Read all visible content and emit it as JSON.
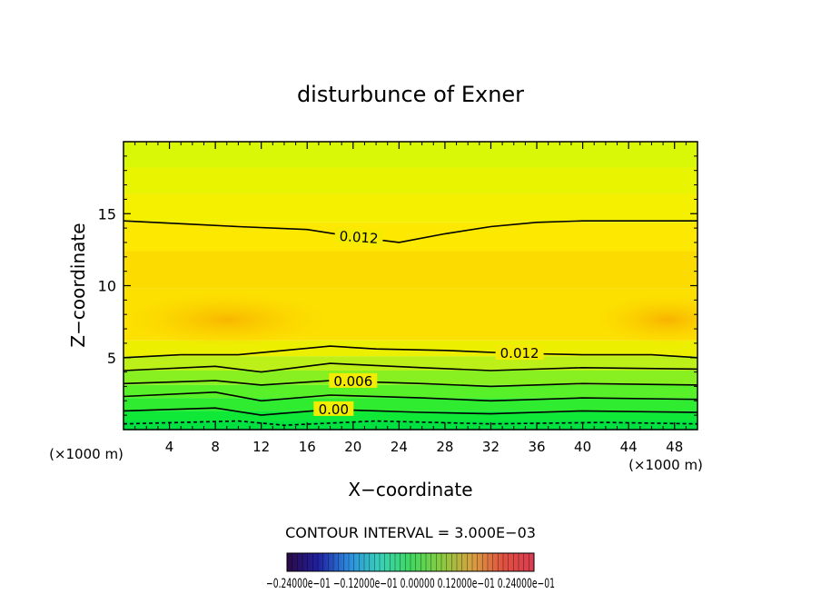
{
  "chart_data": {
    "type": "contour",
    "title": "disturbunce of Exner",
    "xlabel": "X−coordinate",
    "ylabel": "Z−coordinate",
    "x_unit": "(×1000 m)",
    "y_unit": "(×1000 m)",
    "xlim": [
      0,
      50
    ],
    "ylim": [
      0,
      20
    ],
    "x_ticks": [
      4,
      8,
      12,
      16,
      20,
      24,
      28,
      32,
      36,
      40,
      44,
      48
    ],
    "y_ticks": [
      5,
      10,
      15
    ],
    "contour_interval_text": "CONTOUR INTERVAL = 3.000E−03",
    "colorbar_labels": "−0.24000e−01  −0.12000e−01  0.00000  0.12000e−01  0.24000e−01",
    "colorbar_range": [
      -0.024,
      0.024
    ],
    "contours": [
      {
        "level": 0.012,
        "label": "0.012",
        "points": [
          [
            0,
            14.5
          ],
          [
            5,
            14.3
          ],
          [
            10,
            14.1
          ],
          [
            16,
            13.9
          ],
          [
            20,
            13.4
          ],
          [
            24,
            13.0
          ],
          [
            28,
            13.6
          ],
          [
            32,
            14.1
          ],
          [
            36,
            14.4
          ],
          [
            40,
            14.5
          ],
          [
            44,
            14.5
          ],
          [
            50,
            14.5
          ]
        ]
      },
      {
        "level": 0.012,
        "label": "0.012",
        "points": [
          [
            0,
            5.0
          ],
          [
            5,
            5.2
          ],
          [
            10,
            5.2
          ],
          [
            14,
            5.5
          ],
          [
            18,
            5.8
          ],
          [
            22,
            5.6
          ],
          [
            28,
            5.5
          ],
          [
            34,
            5.3
          ],
          [
            40,
            5.2
          ],
          [
            46,
            5.2
          ],
          [
            50,
            5.0
          ]
        ]
      },
      {
        "level": 0.009,
        "points": [
          [
            0,
            4.1
          ],
          [
            8,
            4.4
          ],
          [
            12,
            4.0
          ],
          [
            18,
            4.6
          ],
          [
            26,
            4.3
          ],
          [
            32,
            4.1
          ],
          [
            40,
            4.3
          ],
          [
            50,
            4.2
          ]
        ]
      },
      {
        "level": 0.006,
        "label": "0.006",
        "points": [
          [
            0,
            3.2
          ],
          [
            8,
            3.4
          ],
          [
            12,
            3.1
          ],
          [
            18,
            3.4
          ],
          [
            26,
            3.2
          ],
          [
            32,
            3.0
          ],
          [
            40,
            3.2
          ],
          [
            50,
            3.1
          ]
        ]
      },
      {
        "level": 0.003,
        "points": [
          [
            0,
            2.3
          ],
          [
            8,
            2.6
          ],
          [
            12,
            2.0
          ],
          [
            18,
            2.4
          ],
          [
            26,
            2.2
          ],
          [
            32,
            2.0
          ],
          [
            40,
            2.2
          ],
          [
            50,
            2.1
          ]
        ]
      },
      {
        "level": 0.0,
        "label": "0.00",
        "points": [
          [
            0,
            1.3
          ],
          [
            8,
            1.5
          ],
          [
            12,
            1.0
          ],
          [
            18,
            1.4
          ],
          [
            26,
            1.2
          ],
          [
            32,
            1.1
          ],
          [
            40,
            1.3
          ],
          [
            50,
            1.2
          ]
        ]
      },
      {
        "level": -0.003,
        "dashed": true,
        "points": [
          [
            0,
            0.4
          ],
          [
            10,
            0.6
          ],
          [
            14,
            0.3
          ],
          [
            22,
            0.6
          ],
          [
            32,
            0.4
          ],
          [
            42,
            0.5
          ],
          [
            50,
            0.4
          ]
        ]
      }
    ],
    "fill_bands": [
      {
        "z0": 0.0,
        "z1": 0.6,
        "color": "#00e040"
      },
      {
        "z0": 0.6,
        "z1": 1.3,
        "color": "#10e838"
      },
      {
        "z0": 1.3,
        "z1": 2.2,
        "color": "#30ec30"
      },
      {
        "z0": 2.2,
        "z1": 3.1,
        "color": "#58f028"
      },
      {
        "z0": 3.1,
        "z1": 4.1,
        "color": "#88f020"
      },
      {
        "z0": 4.1,
        "z1": 5.1,
        "color": "#bcf018"
      },
      {
        "z0": 5.1,
        "z1": 6.2,
        "color": "#ecf000"
      },
      {
        "z0": 6.2,
        "z1": 9.8,
        "color": "#fce000"
      },
      {
        "z0": 9.8,
        "z1": 12.4,
        "color": "#fcdc00"
      },
      {
        "z0": 12.4,
        "z1": 14.4,
        "color": "#fce800"
      },
      {
        "z0": 14.4,
        "z1": 16.4,
        "color": "#f4f000"
      },
      {
        "z0": 16.4,
        "z1": 18.2,
        "color": "#e8f400"
      },
      {
        "z0": 18.2,
        "z1": 20.0,
        "color": "#d8f808"
      }
    ],
    "colors": {
      "axis": "#000000",
      "contour": "#000000",
      "colorbar": [
        "#2a0a44",
        "#2020a0",
        "#2c8ce0",
        "#38d0b8",
        "#40d860",
        "#88cc40",
        "#d8a040",
        "#e05040",
        "#d83c50"
      ]
    }
  }
}
